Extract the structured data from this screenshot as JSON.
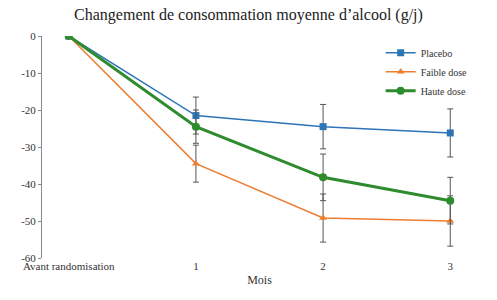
{
  "chart_data": {
    "type": "line",
    "title": "Changement de consommation moyenne d’alcool (g/j)",
    "x_label": "Mois",
    "categories": [
      "Avant randomisation",
      "1",
      "2",
      "3"
    ],
    "ylim": [
      -60,
      0
    ],
    "yticks": [
      -60,
      -50,
      -40,
      -30,
      -20,
      -10,
      0
    ],
    "grid": false,
    "legend": "top right",
    "series": [
      {
        "name": "Placebo",
        "color": "#2e75b6",
        "marker": "square",
        "line_style": "solid",
        "values": [
          0,
          -21.5,
          -24.5,
          -26.2
        ],
        "errors": [
          null,
          5,
          6,
          6.5
        ]
      },
      {
        "name": "Faible dose",
        "color": "#ed7d31",
        "marker": "triangle-up",
        "line_style": "solid",
        "values": [
          0,
          -34.5,
          -49.2,
          -50
        ],
        "errors": [
          null,
          5,
          6.5,
          6.8
        ]
      },
      {
        "name": "Haute dose",
        "color": "#2e8b2e",
        "marker": "circle",
        "line_style": "solid",
        "values": [
          0,
          -24.5,
          -38.2,
          -44.5
        ],
        "errors": [
          null,
          4.5,
          6.3,
          6.3
        ]
      }
    ]
  }
}
